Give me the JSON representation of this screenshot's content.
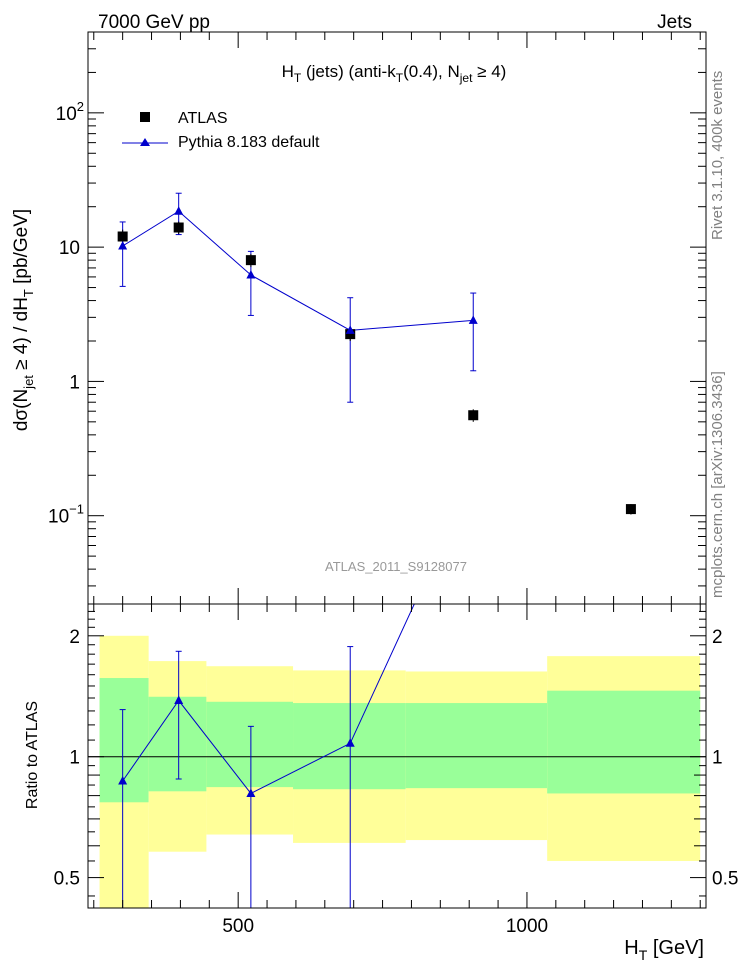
{
  "header": {
    "left": "7000 GeV pp",
    "right": "Jets"
  },
  "side_labels": {
    "top": "Rivet 3.1.10,  400k events",
    "bottom": "mcplots.cern.ch [arXiv:1306.3436]"
  },
  "watermark": "ATLAS_2011_S9128077",
  "colors": {
    "data": "#000000",
    "mc": "#0000cc",
    "band_inner": "#99ff99",
    "band_outer": "#ffff99"
  },
  "chart_data": [
    {
      "type": "scatter",
      "title_parts": {
        "main": "H",
        "sub1": "T",
        "mid": " (jets) (anti-k",
        "sub2": "T",
        "mid2": "(0.4), N",
        "sub3": "jet",
        "end": " ≥ 4)"
      },
      "ylabel_parts": {
        "a": "dσ(N",
        "sub1": "jet",
        "b": " ≥ 4) / dH",
        "sub2": "T",
        "c": " [pb/GeV]"
      },
      "yscale": "log",
      "ylim": [
        0.022,
        400
      ],
      "xlim": [
        240,
        1310
      ],
      "yticks": [
        {
          "v": 100,
          "base": "10",
          "exp": "2"
        },
        {
          "v": 10,
          "base": "10",
          "exp": ""
        },
        {
          "v": 1,
          "base": "1",
          "exp": ""
        },
        {
          "v": 0.1,
          "base": "10",
          "exp": "−1"
        }
      ],
      "legend": {
        "position": "top-left",
        "entries": [
          "ATLAS",
          "Pythia 8.183 default"
        ]
      },
      "series": [
        {
          "name": "ATLAS",
          "marker": "square",
          "x": [
            300,
            397,
            522,
            694,
            907,
            1180
          ],
          "y": [
            12,
            14,
            8,
            2.25,
            0.56,
            0.112
          ],
          "err_lo": [
            1.5,
            1.5,
            0.9,
            0.25,
            0.06,
            0.01
          ],
          "err_hi": [
            1.5,
            1.5,
            0.9,
            0.25,
            0.06,
            0.01
          ]
        },
        {
          "name": "Pythia 8.183 default",
          "marker": "triangle",
          "x": [
            300,
            397,
            522,
            694,
            907
          ],
          "y": [
            10.2,
            18.5,
            6.2,
            2.4,
            2.85
          ],
          "err_lo": [
            5.1,
            6.1,
            3.1,
            1.7,
            1.65
          ],
          "err_hi": [
            5.2,
            6.7,
            3.1,
            1.8,
            1.7
          ]
        }
      ]
    },
    {
      "type": "line",
      "ylabel": "Ratio to ATLAS",
      "xlabel_parts": {
        "a": "H",
        "sub": "T",
        "b": " [GeV]"
      },
      "yscale": "log",
      "ylim": [
        0.42,
        2.4
      ],
      "xlim": [
        240,
        1310
      ],
      "xticks": [
        500,
        1000
      ],
      "yticks": [
        {
          "v": 2,
          "label": "2"
        },
        {
          "v": 1,
          "label": "1"
        },
        {
          "v": 0.5,
          "label": "0.5"
        }
      ],
      "bands": [
        {
          "x0": 260,
          "x1": 345,
          "inner": [
            0.77,
            1.57
          ],
          "outer": [
            0.42,
            2.0
          ]
        },
        {
          "x0": 345,
          "x1": 445,
          "inner": [
            0.82,
            1.41
          ],
          "outer": [
            0.58,
            1.73
          ]
        },
        {
          "x0": 445,
          "x1": 595,
          "inner": [
            0.84,
            1.37
          ],
          "outer": [
            0.64,
            1.68
          ]
        },
        {
          "x0": 595,
          "x1": 790,
          "inner": [
            0.83,
            1.36
          ],
          "outer": [
            0.61,
            1.64
          ]
        },
        {
          "x0": 790,
          "x1": 1035,
          "inner": [
            0.835,
            1.36
          ],
          "outer": [
            0.62,
            1.63
          ]
        },
        {
          "x0": 1035,
          "x1": 1300,
          "inner": [
            0.81,
            1.46
          ],
          "outer": [
            0.55,
            1.78
          ]
        }
      ],
      "series": [
        {
          "name": "Pythia 8.183 default",
          "x": [
            300,
            397,
            522,
            694,
            907
          ],
          "y": [
            0.87,
            1.38,
            0.81,
            1.08,
            5.0
          ],
          "err_lo": [
            0.5,
            0.5,
            0.4,
            0.7,
            0
          ],
          "err_hi": [
            0.44,
            0.45,
            0.38,
            0.8,
            0
          ]
        }
      ]
    }
  ]
}
